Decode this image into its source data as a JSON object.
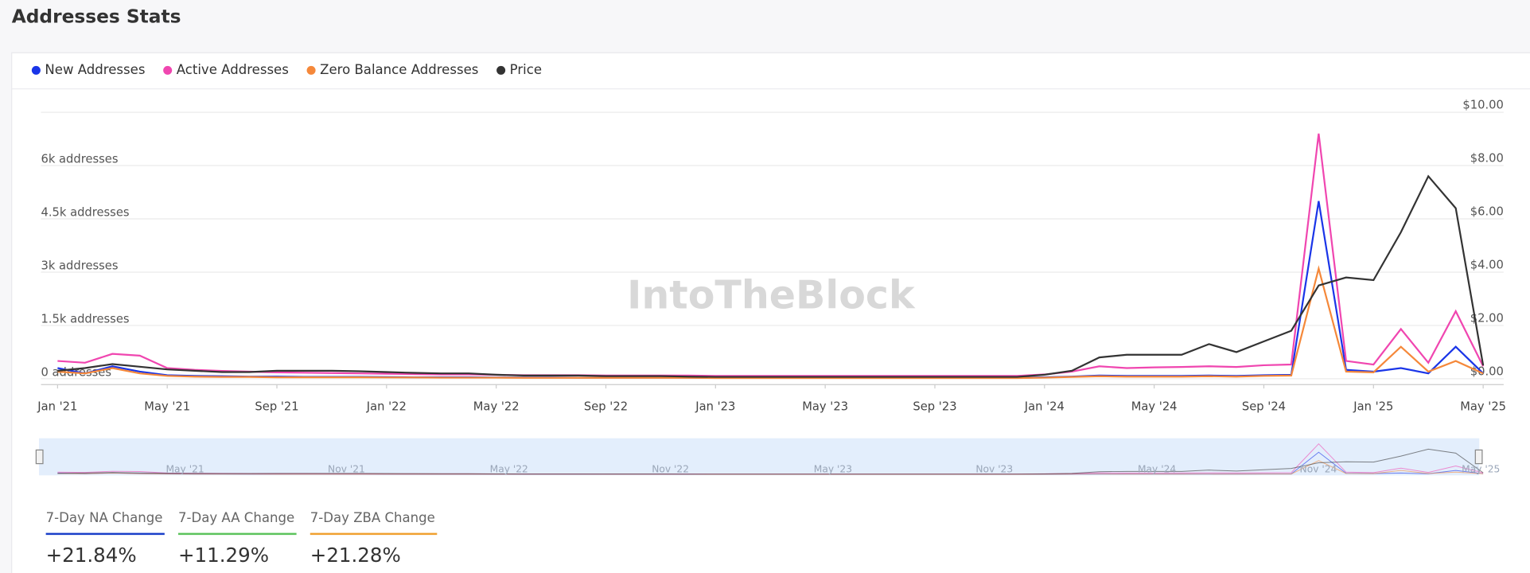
{
  "header": {
    "title": "Addresses Stats",
    "watermark": "IntoTheBlock"
  },
  "chart_data": {
    "type": "line",
    "x": [
      "2021-01",
      "2021-02",
      "2021-03",
      "2021-04",
      "2021-05",
      "2021-06",
      "2021-07",
      "2021-08",
      "2021-09",
      "2021-10",
      "2021-11",
      "2021-12",
      "2022-01",
      "2022-02",
      "2022-03",
      "2022-04",
      "2022-05",
      "2022-06",
      "2022-07",
      "2022-08",
      "2022-09",
      "2022-10",
      "2022-11",
      "2022-12",
      "2023-01",
      "2023-02",
      "2023-03",
      "2023-04",
      "2023-05",
      "2023-06",
      "2023-07",
      "2023-08",
      "2023-09",
      "2023-10",
      "2023-11",
      "2023-12",
      "2024-01",
      "2024-02",
      "2024-03",
      "2024-04",
      "2024-05",
      "2024-06",
      "2024-07",
      "2024-08",
      "2024-09",
      "2024-10",
      "2024-11",
      "2024-12",
      "2025-01",
      "2025-02",
      "2025-03",
      "2025-04",
      "2025-05"
    ],
    "xlim": [
      "2021-01",
      "2025-05"
    ],
    "xticks": [
      {
        "value": "2021-01",
        "label": "Jan '21"
      },
      {
        "value": "2021-05",
        "label": "May '21"
      },
      {
        "value": "2021-09",
        "label": "Sep '21"
      },
      {
        "value": "2022-01",
        "label": "Jan '22"
      },
      {
        "value": "2022-05",
        "label": "May '22"
      },
      {
        "value": "2022-09",
        "label": "Sep '22"
      },
      {
        "value": "2023-01",
        "label": "Jan '23"
      },
      {
        "value": "2023-05",
        "label": "May '23"
      },
      {
        "value": "2023-09",
        "label": "Sep '23"
      },
      {
        "value": "2024-01",
        "label": "Jan '24"
      },
      {
        "value": "2024-05",
        "label": "May '24"
      },
      {
        "value": "2024-09",
        "label": "Sep '24"
      },
      {
        "value": "2025-01",
        "label": "Jan '25"
      },
      {
        "value": "2025-05",
        "label": "May '25"
      }
    ],
    "ylim": [
      0,
      7500
    ],
    "yticks": [
      {
        "value": 0,
        "label": "0 addresses"
      },
      {
        "value": 1500,
        "label": "1.5k addresses"
      },
      {
        "value": 3000,
        "label": "3k addresses"
      },
      {
        "value": 4500,
        "label": "4.5k addresses"
      },
      {
        "value": 6000,
        "label": "6k addresses"
      }
    ],
    "y2lim": [
      0,
      10
    ],
    "y2ticks": [
      {
        "value": 0,
        "label": "$0.00"
      },
      {
        "value": 2,
        "label": "$2.00"
      },
      {
        "value": 4,
        "label": "$4.00"
      },
      {
        "value": 6,
        "label": "$6.00"
      },
      {
        "value": 8,
        "label": "$8.00"
      },
      {
        "value": 10,
        "label": "$10.00"
      }
    ],
    "grid": true,
    "series": [
      {
        "name": "New Addresses",
        "color": "#1a35e8",
        "values": [
          300,
          150,
          350,
          200,
          100,
          80,
          70,
          60,
          60,
          50,
          50,
          50,
          45,
          40,
          40,
          40,
          35,
          35,
          35,
          30,
          30,
          30,
          30,
          30,
          25,
          25,
          25,
          25,
          25,
          25,
          25,
          25,
          25,
          25,
          25,
          25,
          40,
          60,
          90,
          80,
          80,
          80,
          90,
          80,
          100,
          110,
          5000,
          250,
          200,
          300,
          150,
          900,
          150
        ]
      },
      {
        "name": "Active Addresses",
        "color": "#f046b0",
        "values": [
          500,
          450,
          700,
          650,
          300,
          250,
          220,
          200,
          180,
          170,
          160,
          150,
          140,
          130,
          120,
          120,
          110,
          100,
          100,
          100,
          90,
          90,
          90,
          90,
          80,
          80,
          80,
          80,
          80,
          80,
          80,
          80,
          80,
          80,
          80,
          80,
          120,
          200,
          350,
          300,
          320,
          330,
          350,
          330,
          380,
          400,
          6900,
          500,
          400,
          1400,
          450,
          1900,
          350
        ]
      },
      {
        "name": "Zero Balance Addresses",
        "color": "#f5883a",
        "values": [
          200,
          150,
          300,
          150,
          80,
          60,
          50,
          50,
          40,
          40,
          40,
          40,
          35,
          35,
          30,
          30,
          30,
          25,
          25,
          25,
          25,
          25,
          25,
          25,
          20,
          20,
          20,
          20,
          20,
          20,
          20,
          20,
          20,
          20,
          20,
          20,
          30,
          50,
          70,
          60,
          60,
          60,
          70,
          60,
          80,
          90,
          3100,
          200,
          180,
          900,
          200,
          500,
          150
        ]
      },
      {
        "name": "Price",
        "color": "#333333",
        "axis": "y2",
        "values": [
          0.3,
          0.4,
          0.55,
          0.45,
          0.35,
          0.3,
          0.25,
          0.25,
          0.3,
          0.3,
          0.3,
          0.28,
          0.25,
          0.22,
          0.2,
          0.2,
          0.15,
          0.12,
          0.12,
          0.12,
          0.1,
          0.1,
          0.1,
          0.08,
          0.07,
          0.07,
          0.07,
          0.07,
          0.07,
          0.07,
          0.07,
          0.07,
          0.07,
          0.07,
          0.07,
          0.07,
          0.15,
          0.3,
          0.8,
          0.9,
          0.9,
          0.9,
          1.3,
          1.0,
          1.4,
          1.8,
          3.5,
          3.8,
          3.7,
          5.5,
          7.6,
          6.4,
          0.5
        ]
      }
    ],
    "navigator_ticks": [
      "May '21",
      "Nov '21",
      "May '22",
      "Nov '22",
      "May '23",
      "Nov '23",
      "May '24",
      "Nov '24",
      "May '25"
    ]
  },
  "stats": [
    {
      "label": "7-Day NA Change",
      "value": "+21.84%",
      "color": "#1a3fc9"
    },
    {
      "label": "7-Day AA Change",
      "value": "+11.29%",
      "color": "#5cc35c"
    },
    {
      "label": "7-Day ZBA Change",
      "value": "+21.28%",
      "color": "#f0a030"
    }
  ]
}
